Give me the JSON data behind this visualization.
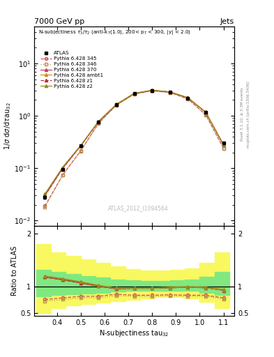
{
  "x": [
    0.35,
    0.425,
    0.5,
    0.575,
    0.65,
    0.725,
    0.8,
    0.875,
    0.95,
    1.025,
    1.1
  ],
  "atlas_y": [
    0.028,
    0.095,
    0.265,
    0.76,
    1.62,
    2.65,
    3.05,
    2.82,
    2.18,
    1.18,
    0.3
  ],
  "atlas_yerr": [
    0.003,
    0.008,
    0.02,
    0.055,
    0.11,
    0.17,
    0.19,
    0.175,
    0.145,
    0.085,
    0.025
  ],
  "py345_y": [
    0.019,
    0.075,
    0.215,
    0.72,
    1.6,
    2.6,
    3.0,
    2.78,
    2.1,
    1.05,
    0.24
  ],
  "py346_y": [
    0.018,
    0.073,
    0.21,
    0.71,
    1.59,
    2.58,
    2.98,
    2.76,
    2.08,
    1.03,
    0.235
  ],
  "py370_y": [
    0.03,
    0.1,
    0.265,
    0.77,
    1.64,
    2.66,
    3.06,
    2.84,
    2.2,
    1.16,
    0.275
  ],
  "pyambt1_y": [
    0.032,
    0.105,
    0.27,
    0.78,
    1.66,
    2.68,
    3.08,
    2.86,
    2.22,
    1.18,
    0.28
  ],
  "pyz1_y": [
    0.03,
    0.1,
    0.265,
    0.77,
    1.64,
    2.66,
    3.06,
    2.84,
    2.2,
    1.16,
    0.275
  ],
  "pyz2_y": [
    0.032,
    0.105,
    0.27,
    0.78,
    1.65,
    2.67,
    3.07,
    2.85,
    2.21,
    1.17,
    0.278
  ],
  "ratio_345": [
    0.76,
    0.79,
    0.82,
    0.82,
    0.86,
    0.84,
    0.84,
    0.85,
    0.84,
    0.84,
    0.79
  ],
  "ratio_346": [
    0.73,
    0.76,
    0.79,
    0.79,
    0.83,
    0.82,
    0.82,
    0.83,
    0.82,
    0.82,
    0.77
  ],
  "ratio_370": [
    1.18,
    1.13,
    1.07,
    1.01,
    0.96,
    0.97,
    0.97,
    0.98,
    0.99,
    0.98,
    0.95
  ],
  "ratio_ambt1": [
    1.2,
    1.15,
    1.09,
    1.03,
    0.97,
    0.98,
    0.98,
    0.99,
    1.0,
    0.99,
    0.95
  ],
  "ratio_z1": [
    1.18,
    1.13,
    1.07,
    1.01,
    0.96,
    0.97,
    0.97,
    0.98,
    0.99,
    0.98,
    0.93
  ],
  "ratio_z2": [
    1.2,
    1.15,
    1.09,
    1.02,
    0.97,
    0.97,
    0.97,
    0.98,
    0.99,
    0.98,
    0.94
  ],
  "band_edges": [
    0.3125,
    0.375,
    0.4375,
    0.5,
    0.5625,
    0.625,
    0.6875,
    0.75,
    0.8125,
    0.875,
    0.9375,
    1.0,
    1.0625,
    1.125
  ],
  "yellow_low": [
    0.5,
    0.6,
    0.65,
    0.68,
    0.7,
    0.73,
    0.75,
    0.78,
    0.8,
    0.8,
    0.78,
    0.72,
    0.6
  ],
  "yellow_high": [
    1.8,
    1.65,
    1.58,
    1.52,
    1.45,
    1.38,
    1.33,
    1.3,
    1.3,
    1.32,
    1.35,
    1.45,
    1.65
  ],
  "green_low": [
    0.82,
    0.84,
    0.86,
    0.87,
    0.89,
    0.91,
    0.92,
    0.93,
    0.93,
    0.93,
    0.92,
    0.89,
    0.84
  ],
  "green_high": [
    1.32,
    1.28,
    1.24,
    1.2,
    1.17,
    1.14,
    1.12,
    1.11,
    1.11,
    1.12,
    1.14,
    1.18,
    1.28
  ],
  "color_345": "#d05050",
  "color_346": "#b89050",
  "color_370": "#c04060",
  "color_ambt1": "#d09010",
  "color_z1": "#b83030",
  "color_z2": "#909020",
  "green_color": "#80e880",
  "yellow_color": "#f8f860",
  "ylim_main": [
    0.008,
    50.0
  ],
  "ylim_ratio": [
    0.45,
    2.15
  ],
  "xlim": [
    0.305,
    1.145
  ]
}
